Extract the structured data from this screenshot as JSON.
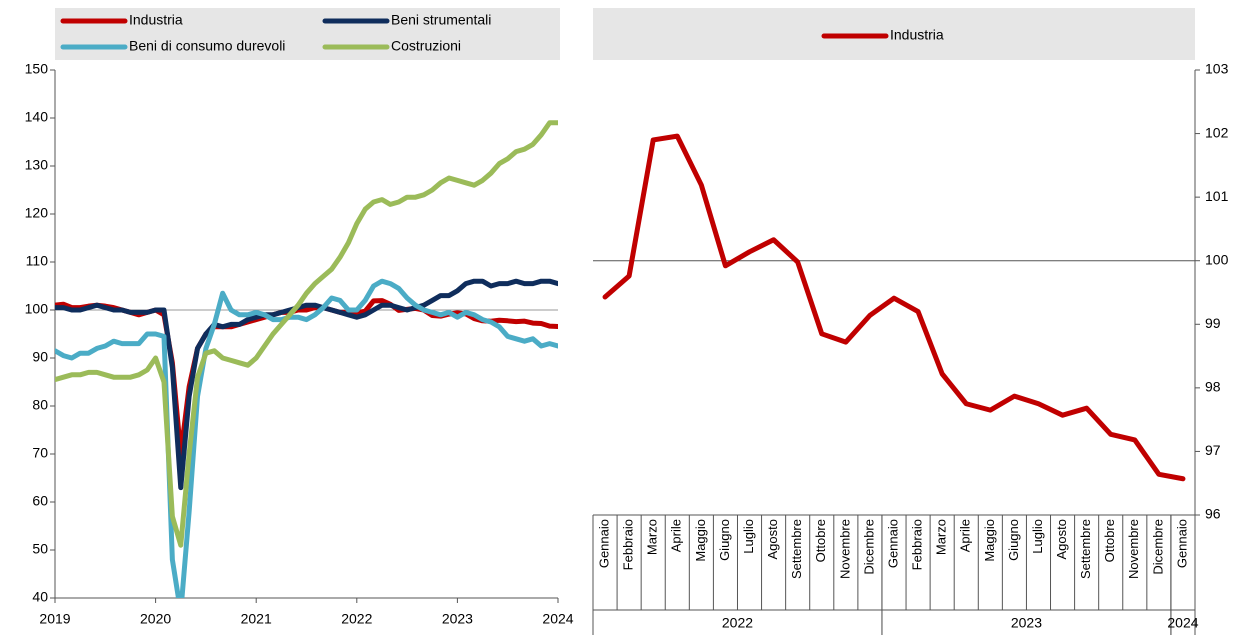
{
  "chart_data": [
    {
      "type": "line",
      "legend": "top",
      "categories": [
        "2019",
        null,
        null,
        null,
        null,
        null,
        null,
        null,
        null,
        null,
        null,
        null,
        "2020",
        null,
        null,
        null,
        null,
        null,
        null,
        null,
        null,
        null,
        null,
        null,
        "2021",
        null,
        null,
        null,
        null,
        null,
        null,
        null,
        null,
        null,
        null,
        null,
        "2022",
        null,
        null,
        null,
        null,
        null,
        null,
        null,
        null,
        null,
        null,
        null,
        "2023",
        null,
        null,
        null,
        null,
        null,
        null,
        null,
        null,
        null,
        null,
        null,
        "2024"
      ],
      "ylim": [
        40,
        150
      ],
      "yticks": [
        40,
        50,
        60,
        70,
        80,
        90,
        100,
        110,
        120,
        130,
        140,
        150
      ],
      "reference_line": 100,
      "series": [
        {
          "name": "Industria",
          "color": "#c00000",
          "values": [
            101,
            101.2,
            100.5,
            100.5,
            100.8,
            101,
            100.8,
            100.5,
            100,
            99.5,
            99,
            99.5,
            100,
            99,
            89,
            70,
            84,
            92,
            95,
            96.5,
            96.5,
            96.5,
            97,
            97.5,
            98,
            98.5,
            99,
            99.5,
            99.5,
            100,
            100,
            100.5,
            100.5,
            100,
            99.5,
            99.5,
            99.43,
            99.76,
            101.9,
            101.96,
            101.19,
            99.92,
            100.14,
            100.33,
            99.98,
            98.85,
            98.72,
            99.14,
            99.41,
            99.2,
            98.22,
            97.75,
            97.65,
            97.87,
            97.75,
            97.57,
            97.68,
            97.27,
            97.18,
            96.64,
            96.57
          ]
        },
        {
          "name": "Beni strumentali",
          "color": "#0f2d5c",
          "values": [
            100.5,
            100.5,
            100,
            100,
            100.5,
            101,
            100.5,
            100,
            100,
            99.5,
            99.5,
            99.5,
            100,
            100,
            88,
            63,
            82,
            92,
            95,
            97,
            96.5,
            97,
            97,
            98,
            98.5,
            99,
            99,
            99.5,
            100,
            100.5,
            101,
            101,
            100.5,
            100,
            99.5,
            99,
            98.5,
            99,
            100,
            101,
            101,
            100.5,
            100,
            100.5,
            101,
            102,
            103,
            103,
            104,
            105.5,
            106,
            106,
            105,
            105.5,
            105.5,
            106,
            105.5,
            105.5,
            106,
            106,
            105.5
          ]
        },
        {
          "name": "Beni di consumo durevoli",
          "color": "#4bacc6",
          "values": [
            91.5,
            90.5,
            90,
            91,
            91,
            92,
            92.5,
            93.5,
            93,
            93,
            93,
            95,
            95,
            94.5,
            48,
            37,
            58,
            82,
            92,
            97,
            103.5,
            100,
            99,
            99,
            99.5,
            99,
            98,
            98,
            98.5,
            98.5,
            98,
            99,
            100.5,
            102.5,
            102,
            100,
            100,
            102,
            105,
            106,
            105.5,
            104.5,
            102.5,
            101,
            100,
            99.5,
            99,
            99.5,
            98.5,
            99.5,
            99,
            98,
            97.5,
            96.5,
            94.5,
            94,
            93.5,
            94,
            92.5,
            93,
            92.5
          ]
        },
        {
          "name": "Costruzioni",
          "color": "#9bbb59",
          "values": [
            85.5,
            86,
            86.5,
            86.5,
            87,
            87,
            86.5,
            86,
            86,
            86,
            86.5,
            87.5,
            90,
            85,
            57,
            51,
            70,
            86,
            91,
            91.5,
            90,
            89.5,
            89,
            88.5,
            90,
            92.5,
            95,
            97,
            99,
            101,
            103.5,
            105.5,
            107,
            108.5,
            111,
            114,
            118,
            121,
            122.5,
            123,
            122,
            122.5,
            123.5,
            123.5,
            124,
            125,
            126.5,
            127.5,
            127,
            126.5,
            126,
            127,
            128.5,
            130.5,
            131.5,
            133,
            133.5,
            134.5,
            136.5,
            139,
            139
          ]
        }
      ]
    },
    {
      "type": "line",
      "legend": "top",
      "y_axis": "right",
      "categories": [
        "Gennaio",
        "Febbraio",
        "Marzo",
        "Aprile",
        "Maggio",
        "Giugno",
        "Luglio",
        "Agosto",
        "Settembre",
        "Ottobre",
        "Novembre",
        "Dicembre",
        "Gennaio",
        "Febbraio",
        "Marzo",
        "Aprile",
        "Maggio",
        "Giugno",
        "Luglio",
        "Agosto",
        "Settembre",
        "Ottobre",
        "Novembre",
        "Dicembre",
        "Gennaio"
      ],
      "category_groups": [
        {
          "label": "2022",
          "count": 12
        },
        {
          "label": "2023",
          "count": 12
        },
        {
          "label": "2024",
          "count": 1
        }
      ],
      "ylim": [
        96,
        103
      ],
      "yticks": [
        96,
        97,
        98,
        99,
        100,
        101,
        102,
        103
      ],
      "reference_line": 100,
      "series": [
        {
          "name": "Industria",
          "color": "#c00000",
          "values": [
            99.43,
            99.76,
            101.9,
            101.96,
            101.19,
            99.92,
            100.14,
            100.33,
            99.98,
            98.85,
            98.72,
            99.14,
            99.41,
            99.2,
            98.22,
            97.75,
            97.65,
            97.87,
            97.75,
            97.57,
            97.68,
            97.27,
            97.18,
            96.64,
            96.57
          ]
        }
      ]
    }
  ]
}
